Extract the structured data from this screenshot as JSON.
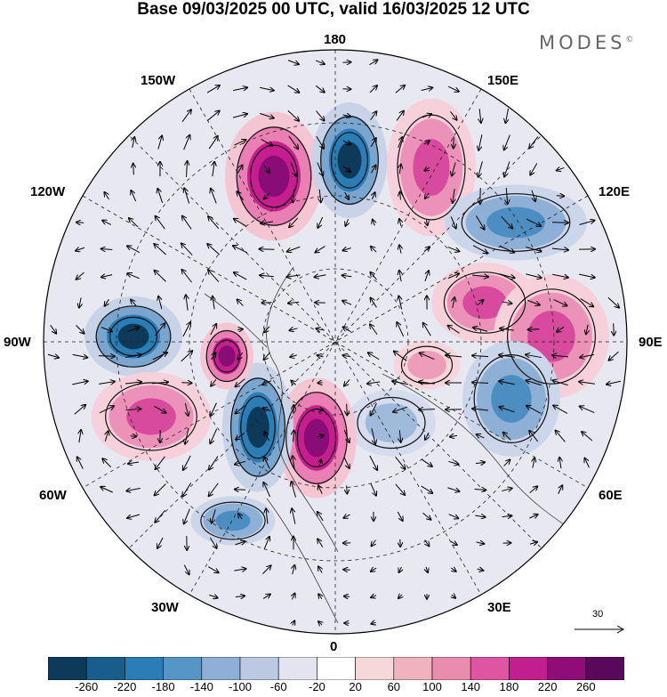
{
  "title": "Base 09/03/2025 00 UTC, valid 16/03/2025 12 UTC",
  "brand": "MODES",
  "brand_mark": "©",
  "longitude_labels": {
    "top": "180",
    "bottom": "0",
    "left": "90W",
    "right": "90E",
    "upper_left_1": "150W",
    "upper_left_2": "120W",
    "upper_right_1": "150E",
    "upper_right_2": "120E",
    "lower_left_1": "60W",
    "lower_left_2": "30W",
    "lower_right_1": "60E",
    "lower_right_2": "30E"
  },
  "vector_scale": {
    "value": "30"
  },
  "colorbar": {
    "ticks": [
      "-260",
      "-220",
      "-180",
      "-140",
      "-100",
      "-60",
      "-20",
      "20",
      "60",
      "100",
      "140",
      "180",
      "220",
      "260"
    ],
    "colors": [
      "#0e3a5a",
      "#175e8c",
      "#2b7db5",
      "#5596c7",
      "#8fb0d6",
      "#bcc9e3",
      "#e3e4f0",
      "#ffffff",
      "#f7d8da",
      "#f0b3bd",
      "#ea8cad",
      "#de55a2",
      "#c11f8f",
      "#8f0c79",
      "#5a085c"
    ]
  },
  "anomaly_centers": [
    {
      "sign": "positive",
      "strength": "strong",
      "region": "north-pacific"
    },
    {
      "sign": "negative",
      "strength": "strong",
      "region": "bering"
    },
    {
      "sign": "positive",
      "strength": "moderate",
      "region": "east-siberia"
    },
    {
      "sign": "negative",
      "strength": "moderate",
      "region": "central-siberia"
    },
    {
      "sign": "positive",
      "strength": "moderate",
      "region": "west-siberia"
    },
    {
      "sign": "positive",
      "strength": "moderate",
      "region": "central-asia"
    },
    {
      "sign": "negative",
      "strength": "moderate",
      "region": "east-asia"
    },
    {
      "sign": "positive",
      "strength": "weak",
      "region": "caspian"
    },
    {
      "sign": "negative",
      "strength": "weak",
      "region": "scandinavia"
    },
    {
      "sign": "positive",
      "strength": "strong",
      "region": "greenland"
    },
    {
      "sign": "negative",
      "strength": "strong",
      "region": "labrador"
    },
    {
      "sign": "positive",
      "strength": "strong",
      "region": "hudson-bay"
    },
    {
      "sign": "negative",
      "strength": "strong",
      "region": "alaska-gulf"
    },
    {
      "sign": "positive",
      "strength": "moderate",
      "region": "north-atlantic"
    },
    {
      "sign": "negative",
      "strength": "moderate",
      "region": "mid-atlantic"
    }
  ]
}
